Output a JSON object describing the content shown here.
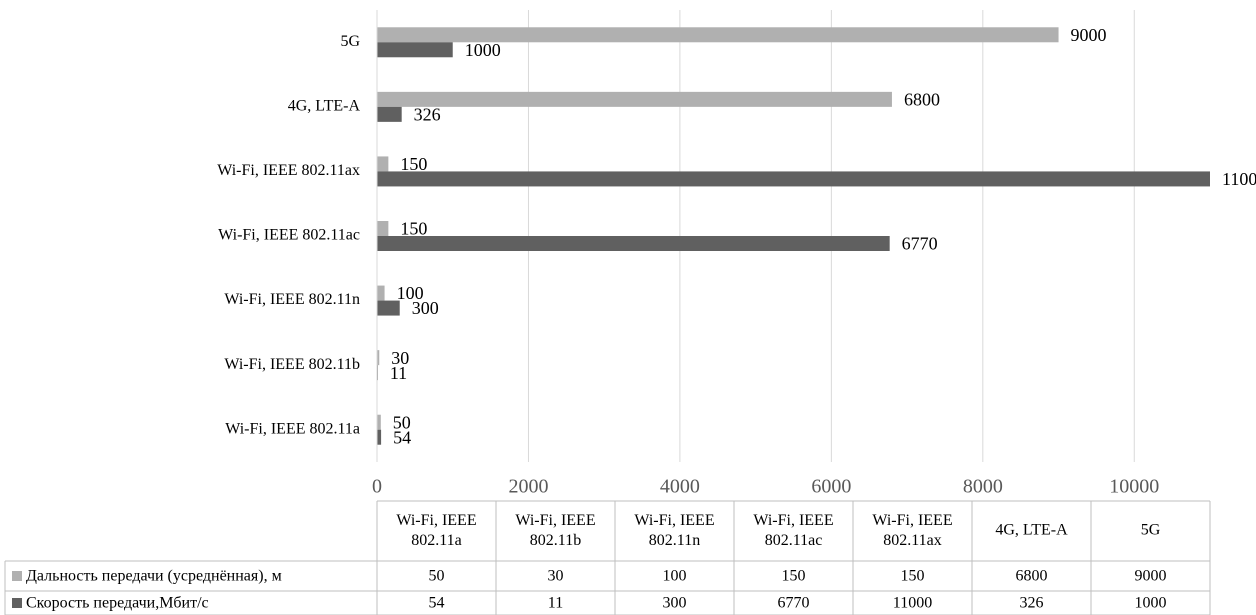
{
  "chart_data": {
    "type": "bar",
    "orientation": "horizontal",
    "categories": [
      "Wi-Fi, IEEE 802.11a",
      "Wi-Fi, IEEE 802.11b",
      "Wi-Fi, IEEE 802.11n",
      "Wi-Fi, IEEE 802.11ac",
      "Wi-Fi, IEEE 802.11ax",
      "4G, LTE-A",
      "5G"
    ],
    "series": [
      {
        "name": "Дальность передачи (усреднённая), м",
        "color": "#b0b0b0",
        "values": [
          50,
          30,
          100,
          150,
          150,
          6800,
          9000
        ]
      },
      {
        "name": "Скорость передачи,Мбит/с",
        "color": "#606060",
        "values": [
          54,
          11,
          300,
          6770,
          11000,
          326,
          1000
        ]
      }
    ],
    "xlim": [
      0,
      11000
    ],
    "xticks": [
      0,
      2000,
      4000,
      6000,
      8000,
      10000
    ],
    "grid": true,
    "data_table": true
  }
}
